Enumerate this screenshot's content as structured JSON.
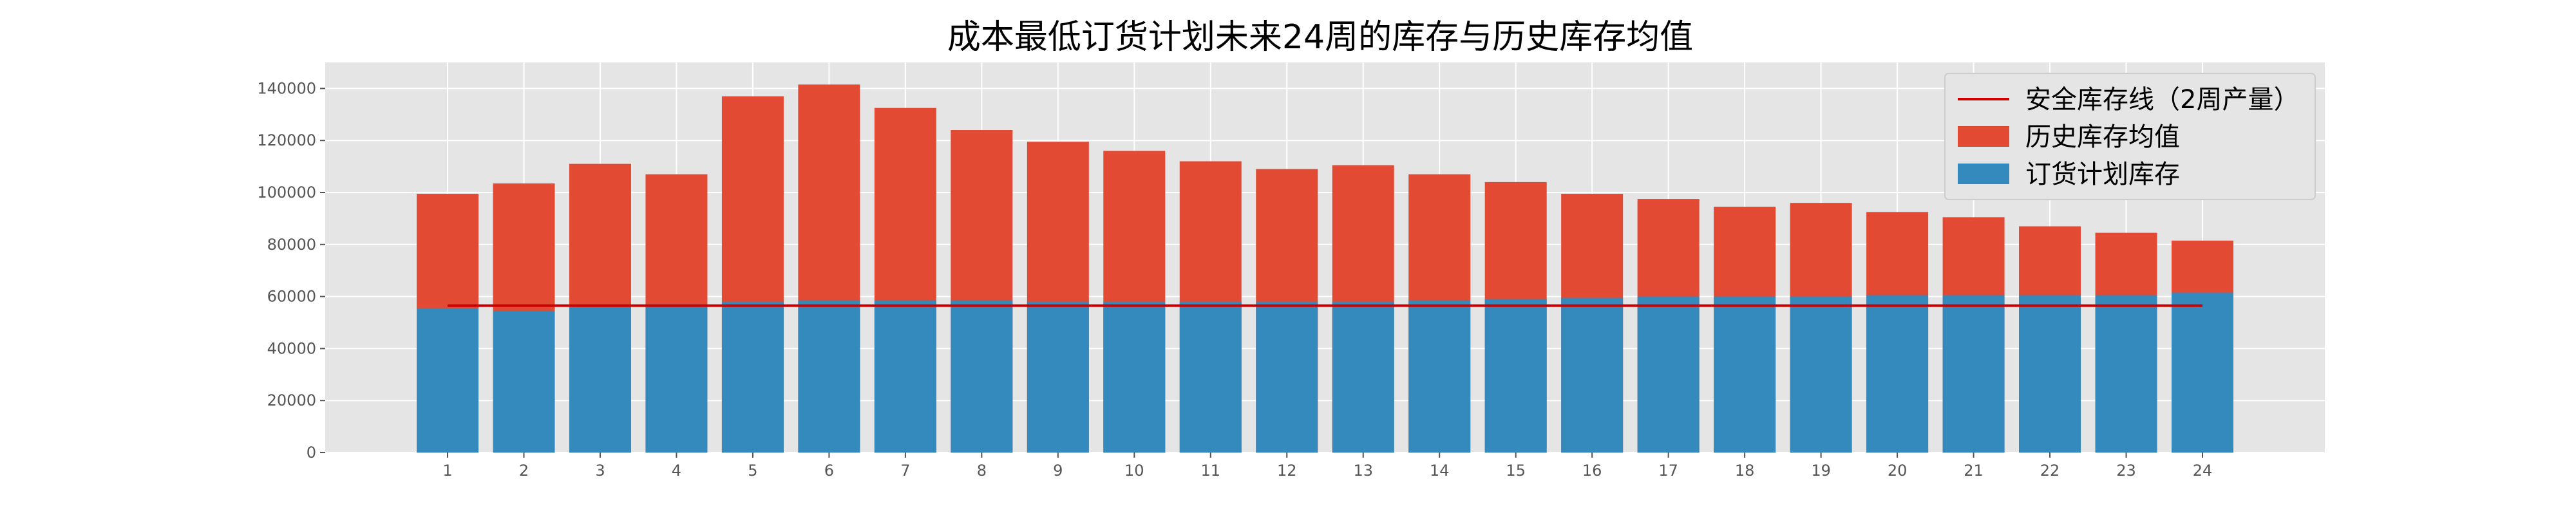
{
  "chart_data": {
    "type": "bar",
    "title": "成本最低订货计划未来24周的库存与历史库存均值",
    "xlabel": "",
    "ylabel": "",
    "categories": [
      "1",
      "2",
      "3",
      "4",
      "5",
      "6",
      "7",
      "8",
      "9",
      "10",
      "11",
      "12",
      "13",
      "14",
      "15",
      "16",
      "17",
      "18",
      "19",
      "20",
      "21",
      "22",
      "23",
      "24"
    ],
    "ylim": [
      0,
      150000
    ],
    "yticks": [
      0,
      20000,
      40000,
      60000,
      80000,
      100000,
      120000,
      140000
    ],
    "grid": true,
    "legend_position": "top-right",
    "series": [
      {
        "name": "历史库存均值",
        "kind": "bar",
        "color": "#E24A33",
        "values": [
          99500,
          103500,
          111000,
          107000,
          137000,
          141500,
          132500,
          124000,
          119500,
          116000,
          112000,
          109000,
          110500,
          107000,
          104000,
          99500,
          97500,
          94500,
          96000,
          92500,
          90500,
          87000,
          84500,
          81500
        ]
      },
      {
        "name": "订货计划库存",
        "kind": "bar",
        "color": "#348ABD",
        "values": [
          55500,
          54500,
          56000,
          57000,
          58000,
          58500,
          58500,
          58500,
          58000,
          58000,
          58000,
          58000,
          58000,
          58500,
          59000,
          59500,
          60000,
          60000,
          60000,
          60500,
          60500,
          60500,
          60500,
          61500
        ]
      },
      {
        "name": "安全库存线（2周产量）",
        "kind": "line",
        "color": "#CC0000",
        "values": [
          56500,
          56500,
          56500,
          56500,
          56500,
          56500,
          56500,
          56500,
          56500,
          56500,
          56500,
          56500,
          56500,
          56500,
          56500,
          56500,
          56500,
          56500,
          56500,
          56500,
          56500,
          56500,
          56500,
          56500
        ]
      }
    ],
    "legend_order": [
      "安全库存线（2周产量）",
      "历史库存均值",
      "订货计划库存"
    ]
  }
}
